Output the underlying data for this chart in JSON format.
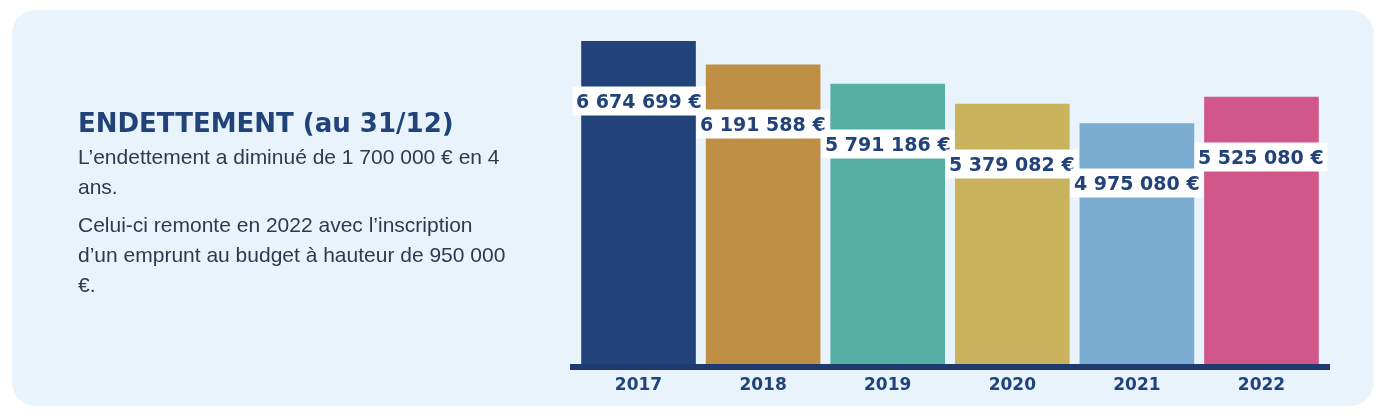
{
  "chart_data": {
    "type": "bar",
    "title": "ENDETTEMENT (au 31/12)",
    "annotations": [
      "L’endettement a diminué de 1 700 000 € en 4 ans.",
      "Celui-ci remonte en 2022 avec l’inscription d’un emprunt au budget à hauteur de 950 000 €."
    ],
    "categories": [
      "2017",
      "2018",
      "2019",
      "2020",
      "2021",
      "2022"
    ],
    "values": [
      6674699,
      6191588,
      5791186,
      5379082,
      4975080,
      5525080
    ],
    "value_labels": [
      "6 674 699 €",
      "6 191 588 €",
      "5 791 186 €",
      "5 379 082 €",
      "4 975 080 €",
      "5 525 080 €"
    ],
    "colors": [
      "#22427a",
      "#bf8f45",
      "#55b0a3",
      "#c9b35c",
      "#7aabd0",
      "#d05788"
    ],
    "tick_labels": "x",
    "grid": false,
    "legend": false
  }
}
